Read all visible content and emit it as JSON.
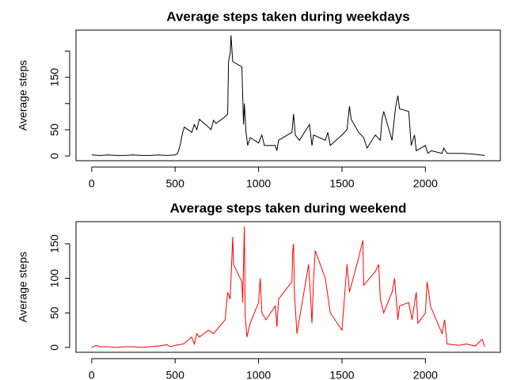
{
  "chart_data": [
    {
      "type": "line",
      "title": "Average steps taken during weekdays",
      "y_label": "Average steps",
      "xlim": [
        -94,
        2449
      ],
      "ylim": [
        -9,
        240
      ],
      "xticks": [
        0,
        500,
        1000,
        1500,
        2000
      ],
      "yticks": [
        0,
        50,
        150
      ],
      "ytick_marks": [
        0,
        50,
        100,
        150,
        200
      ],
      "series": [
        {
          "color": "#000000",
          "x": [
            0,
            50,
            100,
            150,
            200,
            250,
            300,
            350,
            400,
            450,
            500,
            515,
            530,
            545,
            555,
            600,
            615,
            630,
            645,
            700,
            715,
            730,
            745,
            800,
            815,
            820,
            830,
            835,
            845,
            900,
            910,
            915,
            925,
            935,
            950,
            1000,
            1020,
            1035,
            1100,
            1110,
            1120,
            1200,
            1210,
            1220,
            1245,
            1305,
            1320,
            1330,
            1400,
            1415,
            1430,
            1500,
            1530,
            1545,
            1555,
            1600,
            1630,
            1650,
            1700,
            1715,
            1730,
            1740,
            1750,
            1800,
            1820,
            1835,
            1845,
            1900,
            1915,
            1935,
            1945,
            2000,
            2015,
            2035,
            2100,
            2110,
            2130,
            2200,
            2225,
            2300,
            2355
          ],
          "values": [
            2,
            1,
            2,
            1,
            1,
            2,
            1,
            1,
            2,
            1,
            2,
            5,
            20,
            45,
            55,
            45,
            60,
            50,
            70,
            55,
            50,
            68,
            62,
            75,
            80,
            180,
            195,
            230,
            180,
            170,
            60,
            100,
            45,
            20,
            35,
            25,
            40,
            20,
            20,
            10,
            30,
            45,
            80,
            40,
            30,
            60,
            20,
            40,
            30,
            45,
            20,
            40,
            50,
            95,
            70,
            45,
            35,
            15,
            40,
            35,
            30,
            70,
            85,
            30,
            90,
            115,
            90,
            85,
            20,
            40,
            10,
            20,
            5,
            10,
            5,
            15,
            5,
            5,
            5,
            3,
            1
          ]
        }
      ]
    },
    {
      "type": "line",
      "title": "Average steps taken during weekend",
      "y_label": "Average steps",
      "xlim": [
        -94,
        2449
      ],
      "ylim": [
        -7,
        182
      ],
      "xticks": [
        0,
        500,
        1000,
        1500,
        2000
      ],
      "yticks": [
        0,
        50,
        100,
        150
      ],
      "ytick_marks": [
        0,
        50,
        100,
        150
      ],
      "series": [
        {
          "color": "#ff0000",
          "x": [
            0,
            25,
            50,
            100,
            150,
            200,
            250,
            300,
            350,
            400,
            450,
            475,
            500,
            550,
            600,
            615,
            630,
            645,
            700,
            730,
            800,
            815,
            830,
            845,
            850,
            900,
            905,
            915,
            920,
            930,
            950,
            1000,
            1010,
            1020,
            1045,
            1100,
            1110,
            1120,
            1200,
            1205,
            1210,
            1215,
            1230,
            1300,
            1310,
            1320,
            1330,
            1340,
            1400,
            1430,
            1500,
            1530,
            1545,
            1600,
            1620,
            1625,
            1630,
            1700,
            1720,
            1730,
            1750,
            1800,
            1815,
            1835,
            1845,
            1900,
            1920,
            1945,
            1955,
            2000,
            2010,
            2020,
            2030,
            2100,
            2115,
            2130,
            2200,
            2245,
            2300,
            2340,
            2355
          ],
          "values": [
            0,
            3,
            1,
            1,
            0,
            1,
            1,
            0,
            1,
            2,
            4,
            1,
            3,
            5,
            15,
            5,
            20,
            15,
            25,
            20,
            40,
            80,
            70,
            160,
            120,
            95,
            65,
            175,
            45,
            15,
            35,
            65,
            100,
            50,
            40,
            60,
            30,
            70,
            95,
            140,
            150,
            80,
            20,
            120,
            80,
            35,
            100,
            140,
            100,
            50,
            25,
            120,
            80,
            130,
            150,
            155,
            90,
            110,
            120,
            70,
            50,
            80,
            100,
            40,
            60,
            65,
            40,
            80,
            35,
            50,
            95,
            80,
            60,
            20,
            40,
            5,
            3,
            5,
            2,
            12,
            1
          ]
        }
      ]
    }
  ]
}
